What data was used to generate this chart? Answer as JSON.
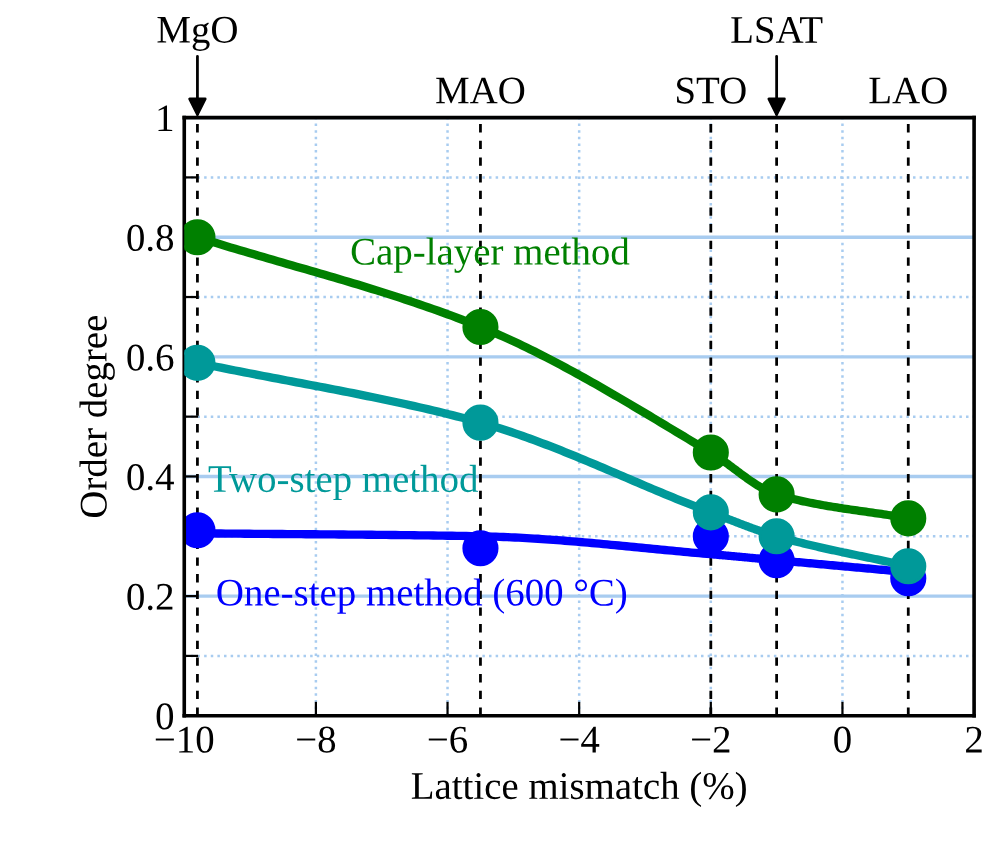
{
  "chart_data": {
    "type": "line",
    "xlabel": "Lattice mismatch (%)",
    "ylabel": "Order degree",
    "xlim": [
      -10,
      2
    ],
    "ylim": [
      0,
      1
    ],
    "xticks": [
      {
        "value": -10,
        "label": "−10"
      },
      {
        "value": -8,
        "label": "−8"
      },
      {
        "value": -6,
        "label": "−6"
      },
      {
        "value": -4,
        "label": "−4"
      },
      {
        "value": -2,
        "label": "−2"
      },
      0,
      2
    ],
    "yticks": [
      0,
      {
        "value": 0.1,
        "label": null
      },
      {
        "value": 0.2,
        "label": "0.2"
      },
      {
        "value": 0.3,
        "label": null
      },
      {
        "value": 0.4,
        "label": "0.4"
      },
      {
        "value": 0.5,
        "label": null
      },
      {
        "value": 0.6,
        "label": "0.6"
      },
      {
        "value": 0.7,
        "label": null
      },
      {
        "value": 0.8,
        "label": "0.8"
      },
      {
        "value": 0.9,
        "label": null
      },
      1
    ],
    "grid": true,
    "legend": false,
    "annotations": [
      {
        "text": "MgO",
        "x": -9.8,
        "y": 1
      },
      {
        "text": "LSAT",
        "x": -1,
        "y": 1
      }
    ],
    "series": [
      {
        "name": "Cap-layer method",
        "color": "#008000",
        "marker": "circle",
        "x": [
          -9.8,
          -5.5,
          -2,
          -1,
          1
        ],
        "values": [
          0.8,
          0.65,
          0.44,
          0.37,
          0.33
        ]
      },
      {
        "name": "Two-step method",
        "color": "#009999",
        "marker": "circle",
        "x": [
          -9.8,
          -5.5,
          -2,
          -1,
          1
        ],
        "values": [
          0.59,
          0.49,
          0.34,
          0.3,
          0.25
        ]
      },
      {
        "name": "One-step method (600 °C)",
        "color": "#0000ff",
        "type": "scatter",
        "marker": "circle",
        "x": [
          -9.8,
          -5.5,
          -2,
          -1,
          1
        ],
        "values": [
          0.31,
          0.28,
          0.3,
          0.26,
          0.23
        ]
      },
      {
        "color": "#0000ff",
        "marker": "none",
        "x": [
          -9.8,
          -5.5,
          -2,
          -1,
          1
        ],
        "values": [
          0.305,
          0.3,
          0.27,
          0.26,
          0.24
        ]
      }
    ],
    "ref_lines": [
      {
        "axis": "x",
        "value": -9.8,
        "line_style": "dashed",
        "color": "#000000"
      },
      {
        "axis": "x",
        "value": -5.5,
        "label": "MAO",
        "line_style": "dashed",
        "color": "#000000"
      },
      {
        "axis": "x",
        "value": -2,
        "label": "STO",
        "line_style": "dashed",
        "color": "#000000"
      },
      {
        "axis": "x",
        "value": -1,
        "line_style": "dashed",
        "color": "#000000"
      },
      {
        "axis": "x",
        "value": 1,
        "label": "LAO",
        "line_style": "dashed",
        "color": "#000000"
      }
    ]
  }
}
